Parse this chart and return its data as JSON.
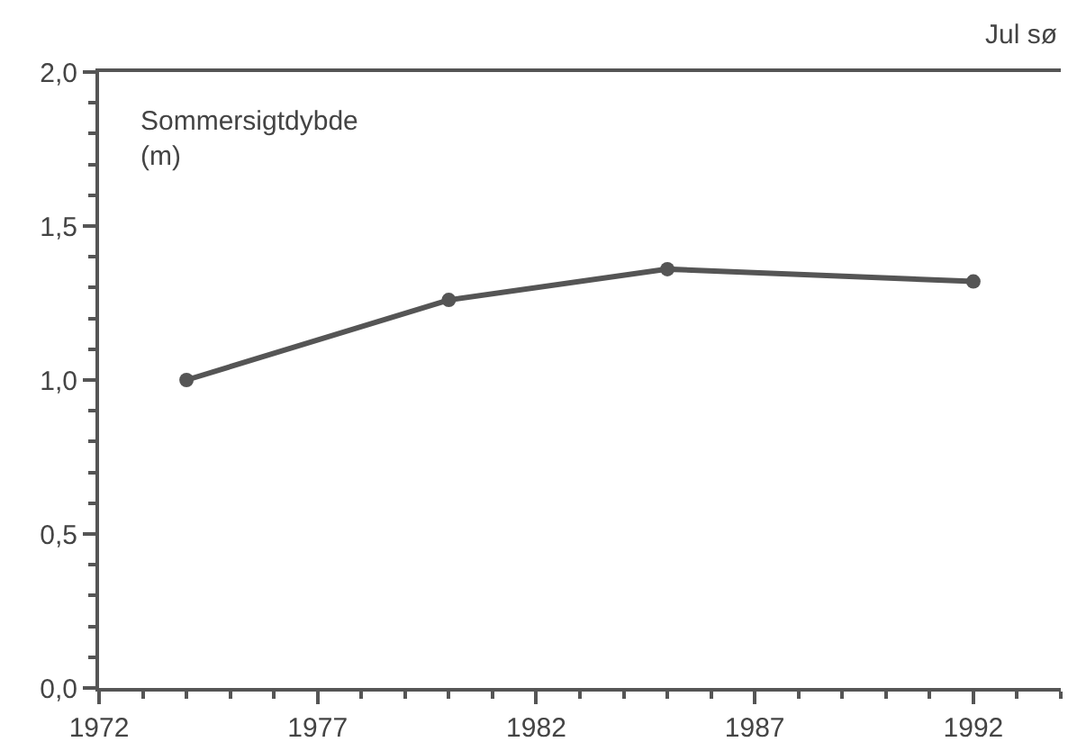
{
  "chart_data": {
    "type": "line",
    "title": "Jul sø",
    "ylabel": "Sommersigtdybde\n(m)",
    "x": [
      1974,
      1980,
      1985,
      1992
    ],
    "series": [
      {
        "color": "#555555",
        "values": [
          1.0,
          1.26,
          1.36,
          1.32
        ]
      }
    ],
    "xlim": [
      1972,
      1994
    ],
    "xticks": [
      1972,
      {
        "value": 1973,
        "label": null
      },
      {
        "value": 1974,
        "label": null
      },
      {
        "value": 1975,
        "label": null
      },
      {
        "value": 1976,
        "label": null
      },
      1977,
      {
        "value": 1978,
        "label": null
      },
      {
        "value": 1979,
        "label": null
      },
      {
        "value": 1980,
        "label": null
      },
      {
        "value": 1981,
        "label": null
      },
      1982,
      {
        "value": 1983,
        "label": null
      },
      {
        "value": 1984,
        "label": null
      },
      {
        "value": 1985,
        "label": null
      },
      {
        "value": 1986,
        "label": null
      },
      1987,
      {
        "value": 1988,
        "label": null
      },
      {
        "value": 1989,
        "label": null
      },
      {
        "value": 1990,
        "label": null
      },
      {
        "value": 1991,
        "label": null
      },
      1992,
      {
        "value": 1993,
        "label": null
      },
      {
        "value": 1994,
        "label": null
      }
    ],
    "ylim": [
      0,
      2
    ],
    "yticks": [
      {
        "value": 0,
        "label": "0,0"
      },
      {
        "value": 0.1,
        "label": null
      },
      {
        "value": 0.2,
        "label": null
      },
      {
        "value": 0.3,
        "label": null
      },
      {
        "value": 0.4,
        "label": null
      },
      {
        "value": 0.5,
        "label": "0,5"
      },
      {
        "value": 0.6,
        "label": null
      },
      {
        "value": 0.7,
        "label": null
      },
      {
        "value": 0.8,
        "label": null
      },
      {
        "value": 0.9,
        "label": null
      },
      {
        "value": 1.0,
        "label": "1,0"
      },
      {
        "value": 1.1,
        "label": null
      },
      {
        "value": 1.2,
        "label": null
      },
      {
        "value": 1.3,
        "label": null
      },
      {
        "value": 1.4,
        "label": null
      },
      {
        "value": 1.5,
        "label": "1,5"
      },
      {
        "value": 1.6,
        "label": null
      },
      {
        "value": 1.7,
        "label": null
      },
      {
        "value": 1.8,
        "label": null
      },
      {
        "value": 1.9,
        "label": null
      },
      {
        "value": 2.0,
        "label": "2,0"
      }
    ],
    "marker": "circle",
    "line_style": "solid"
  }
}
